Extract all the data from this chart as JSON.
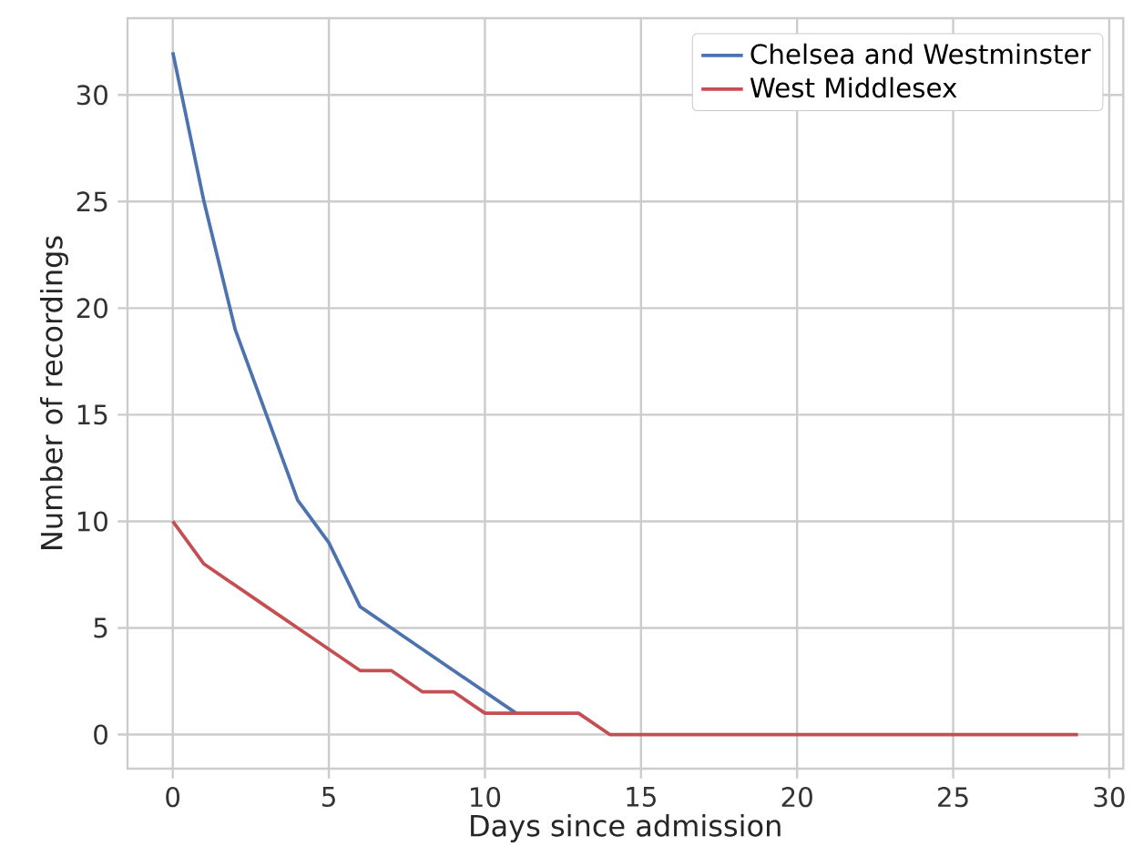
{
  "chart_data": {
    "type": "line",
    "xlabel": "Days since admission",
    "ylabel": "Number of recordings",
    "x": [
      0,
      1,
      2,
      3,
      4,
      5,
      6,
      7,
      8,
      9,
      10,
      11,
      12,
      13,
      14,
      15,
      16,
      17,
      18,
      19,
      20,
      21,
      22,
      23,
      24,
      25,
      26,
      27,
      28,
      29
    ],
    "series": [
      {
        "name": "Chelsea and Westminster",
        "color": "#4c72b0",
        "values": [
          32,
          25,
          19,
          15,
          11,
          9,
          6,
          5,
          4,
          3,
          2,
          1,
          null,
          null,
          null,
          null,
          null,
          null,
          null,
          null,
          null,
          null,
          null,
          null,
          null,
          null,
          null,
          null,
          null,
          null
        ]
      },
      {
        "name": "West Middlesex",
        "color": "#c44e52",
        "values": [
          10,
          8,
          7,
          6,
          5,
          4,
          3,
          3,
          2,
          2,
          1,
          1,
          1,
          1,
          0,
          0,
          0,
          0,
          0,
          0,
          0,
          0,
          0,
          0,
          0,
          0,
          0,
          0,
          0,
          0
        ]
      }
    ],
    "xlim": [
      -1.45,
      30.45
    ],
    "ylim": [
      -1.6,
      33.6
    ],
    "xticks": [
      0,
      5,
      10,
      15,
      20,
      25,
      30
    ],
    "yticks": [
      0,
      5,
      10,
      15,
      20,
      25,
      30
    ],
    "grid": true,
    "legend": "top right",
    "marker": "none",
    "line_style": "solid"
  }
}
